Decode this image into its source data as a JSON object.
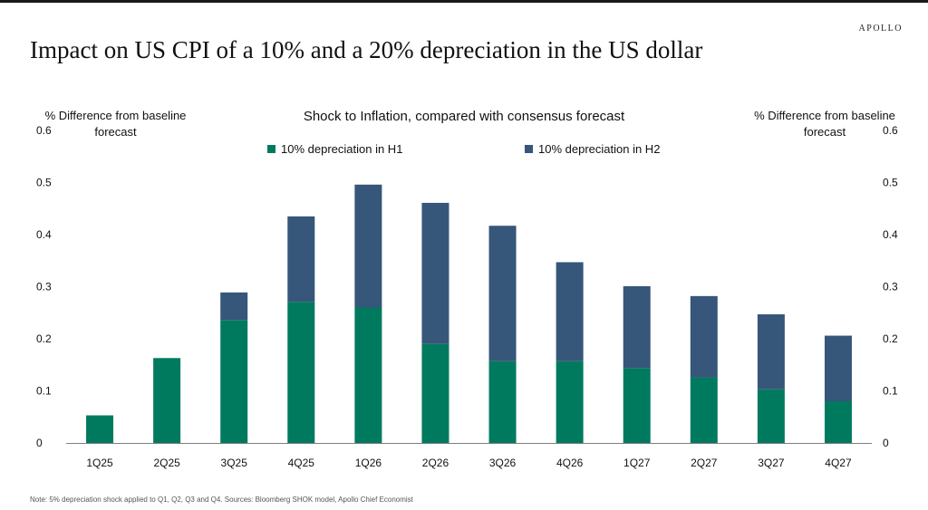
{
  "brand": "APOLLO",
  "title": "Impact on US CPI of a 10% and a 20% depreciation in the US dollar",
  "footnote": "Note: 5% depreciation shock applied to Q1, Q2, Q3 and Q4. Sources: Bloomberg SHOK model, Apollo Chief Economist",
  "chart_data": {
    "type": "bar",
    "stacked": true,
    "title": "Shock to Inflation, compared with consensus forecast",
    "ylabel": "% Difference from baseline forecast",
    "ylabel_right": "% Difference from baseline forecast",
    "ylim": [
      0,
      0.6
    ],
    "yticks": [
      "0",
      "0.1",
      "0.2",
      "0.3",
      "0.4",
      "0.5",
      "0.6"
    ],
    "categories": [
      "1Q25",
      "2Q25",
      "3Q25",
      "4Q25",
      "1Q26",
      "2Q26",
      "3Q26",
      "4Q26",
      "1Q27",
      "2Q27",
      "3Q27",
      "4Q27"
    ],
    "series": [
      {
        "name": "10% depreciation in H1",
        "color": "#007a5e",
        "values": [
          0.053,
          0.163,
          0.236,
          0.271,
          0.26,
          0.19,
          0.157,
          0.157,
          0.144,
          0.126,
          0.103,
          0.08
        ]
      },
      {
        "name": "10% depreciation in H2",
        "color": "#36567a",
        "values": [
          0,
          0,
          0.053,
          0.164,
          0.236,
          0.271,
          0.26,
          0.19,
          0.157,
          0.156,
          0.144,
          0.126
        ]
      }
    ],
    "grid": false,
    "legend_position": "top"
  }
}
